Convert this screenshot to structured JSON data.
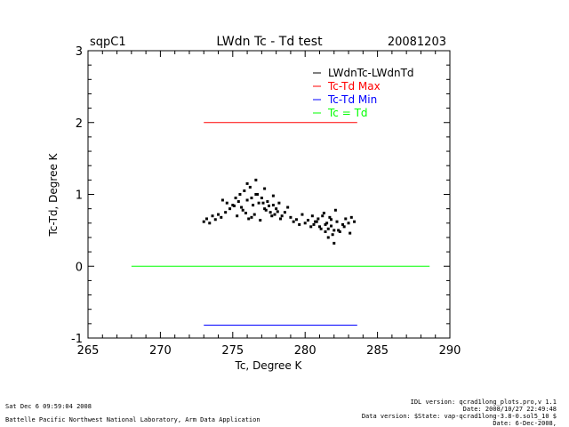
{
  "header": {
    "site": "sqpC1",
    "title": "LWdn Tc - Td test",
    "date": "20081203"
  },
  "footer": {
    "left_lines": [
      "Sat Dec  6 09:59:04 2008",
      "Battelle Pacific Northwest National Laboratory, Arm Data Application"
    ],
    "right_lines": [
      "IDL version: qcrad1long_plots.pro,v 1.1",
      "Date: 2008/10/27 22:49:48",
      "Data version: $State: vap-qcrad1long-3.8-0.sol5_10 $",
      "Date: 6-Dec-2008,"
    ]
  },
  "chart_data": {
    "type": "scatter",
    "title": "LWdn Tc - Td test",
    "xlabel": "Tc, Degree K",
    "ylabel": "Tc-Td, Degree K",
    "xlim": [
      265,
      290
    ],
    "ylim": [
      -1,
      3
    ],
    "xticks": [
      265,
      270,
      275,
      280,
      285,
      290
    ],
    "yticks": [
      -1,
      0,
      1,
      2,
      3
    ],
    "grid": false,
    "legend_placement": "top-right",
    "legend": [
      {
        "label": "LWdnTc-LWdnTd",
        "color": "#000000"
      },
      {
        "label": "Tc-Td Max",
        "color": "#ff0000"
      },
      {
        "label": "Tc-Td Min",
        "color": "#0000ff"
      },
      {
        "label": "Tc = Td",
        "color": "#00ff00"
      }
    ],
    "series": [
      {
        "name": "Tc-Td Max",
        "color": "#ff0000",
        "style": "line",
        "x": [
          273.0,
          283.6
        ],
        "y": [
          2.0,
          2.0
        ]
      },
      {
        "name": "Tc-Td Min",
        "color": "#0000ff",
        "style": "line",
        "x": [
          273.0,
          283.6
        ],
        "y": [
          -0.82,
          -0.82
        ]
      },
      {
        "name": "Tc = Td",
        "color": "#00ff00",
        "style": "line",
        "x": [
          268.0,
          288.6
        ],
        "y": [
          0.0,
          0.0
        ]
      },
      {
        "name": "LWdnTc-LWdnTd",
        "color": "#000000",
        "style": "points",
        "x": [
          273.0,
          273.2,
          273.4,
          273.6,
          273.8,
          274.0,
          274.2,
          274.5,
          274.8,
          275.0,
          275.2,
          275.4,
          275.6,
          275.8,
          276.0,
          276.2,
          276.4,
          276.6,
          276.8,
          277.0,
          277.2,
          277.4,
          277.6,
          277.8,
          278.0,
          278.2,
          278.4,
          278.6,
          278.8,
          279.0,
          279.2,
          279.4,
          279.6,
          279.8,
          280.0,
          280.2,
          280.4,
          280.6,
          280.8,
          281.0,
          281.2,
          281.4,
          281.6,
          281.8,
          282.0,
          282.2,
          282.4,
          282.6,
          282.8,
          283.0,
          283.2,
          283.4,
          275.3,
          275.7,
          276.1,
          276.5,
          276.9,
          277.3,
          277.7,
          278.1,
          276.3,
          276.7,
          277.1,
          277.5,
          275.9,
          276.3,
          277.9,
          278.3,
          275.5,
          276.0,
          276.6,
          277.2,
          277.8,
          274.6,
          274.3,
          275.1,
          280.9,
          281.3,
          281.7,
          282.1,
          281.1,
          281.5,
          281.9,
          282.3,
          280.5,
          280.7,
          282.7,
          283.1,
          281.6,
          282.0,
          281.4,
          281.8
        ],
        "y": [
          0.62,
          0.66,
          0.6,
          0.7,
          0.65,
          0.72,
          0.68,
          0.75,
          0.8,
          0.85,
          0.95,
          0.9,
          0.82,
          1.05,
          0.92,
          1.1,
          0.85,
          1.0,
          0.88,
          0.95,
          0.8,
          0.9,
          0.75,
          0.85,
          0.8,
          0.88,
          0.7,
          0.75,
          0.82,
          0.68,
          0.62,
          0.65,
          0.58,
          0.72,
          0.6,
          0.64,
          0.55,
          0.58,
          0.62,
          0.55,
          0.7,
          0.58,
          0.52,
          0.65,
          0.5,
          0.62,
          0.48,
          0.58,
          0.66,
          0.6,
          0.68,
          0.62,
          0.7,
          0.78,
          0.66,
          0.72,
          0.64,
          0.78,
          0.7,
          0.76,
          0.95,
          1.0,
          0.88,
          0.84,
          0.74,
          0.68,
          0.72,
          0.66,
          1.0,
          1.15,
          1.2,
          1.08,
          0.98,
          0.88,
          0.92,
          0.84,
          0.66,
          0.74,
          0.68,
          0.78,
          0.52,
          0.6,
          0.44,
          0.5,
          0.7,
          0.62,
          0.55,
          0.46,
          0.4,
          0.32,
          0.48,
          0.56
        ]
      }
    ]
  }
}
